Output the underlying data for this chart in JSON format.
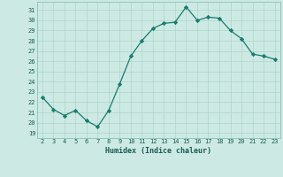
{
  "x": [
    2,
    3,
    4,
    5,
    6,
    7,
    8,
    9,
    10,
    11,
    12,
    13,
    14,
    15,
    16,
    17,
    18,
    19,
    20,
    21,
    22,
    23
  ],
  "y": [
    22.5,
    21.3,
    20.7,
    21.2,
    20.2,
    19.6,
    21.2,
    23.8,
    26.5,
    28.0,
    29.2,
    29.7,
    29.8,
    31.3,
    30.0,
    30.3,
    30.2,
    29.0,
    28.2,
    26.7,
    26.5,
    26.2
  ],
  "line_color": "#1a7a6e",
  "marker": "D",
  "marker_size": 2.2,
  "bg_color": "#cceae3",
  "grid_color": "#aed4cc",
  "xlabel": "Humidex (Indice chaleur)",
  "ylabel_ticks": [
    19,
    20,
    21,
    22,
    23,
    24,
    25,
    26,
    27,
    28,
    29,
    30,
    31
  ],
  "ylim": [
    18.5,
    31.8
  ],
  "xlim": [
    1.5,
    23.5
  ]
}
